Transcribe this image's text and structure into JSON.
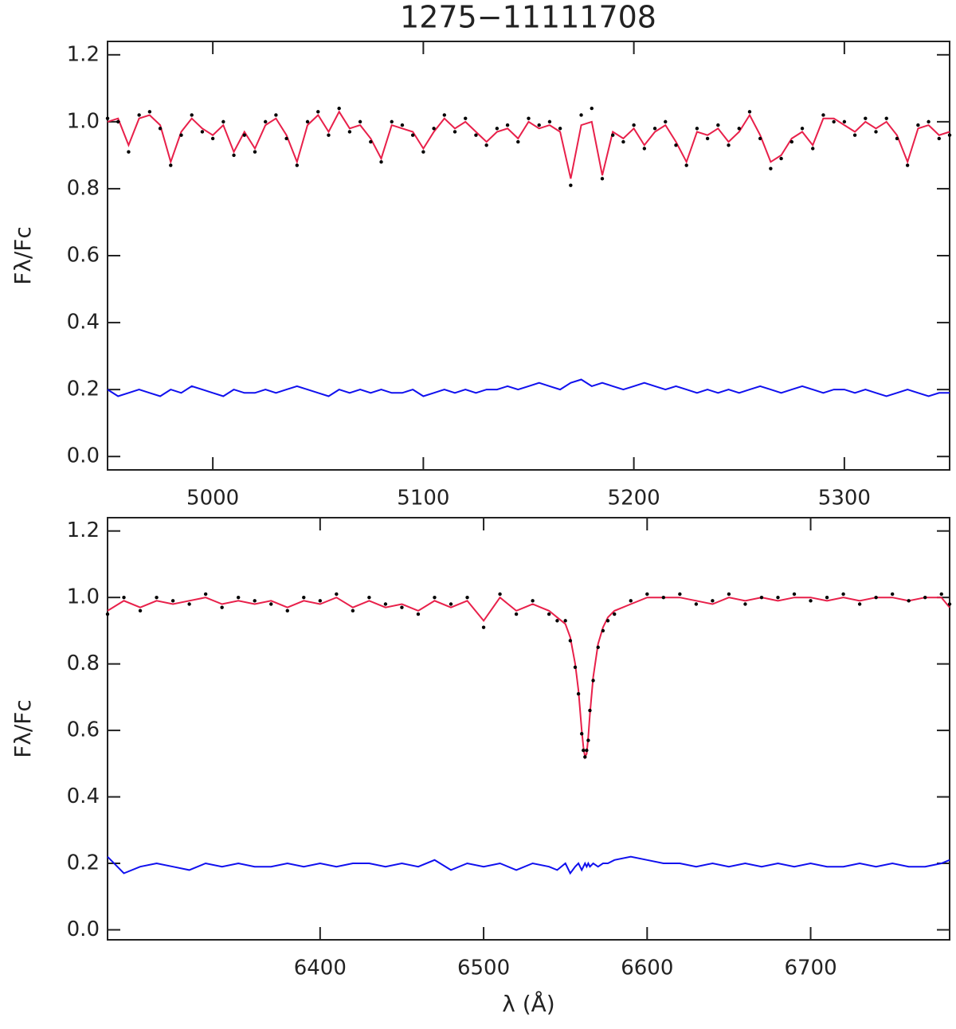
{
  "title": "1275−11111708",
  "chart_data": [
    {
      "type": "line",
      "ylabel": "Fλ/Fc",
      "xlim": [
        4950,
        5350
      ],
      "xticks": [
        5000,
        5100,
        5200,
        5300
      ],
      "ylim": [
        -0.04,
        1.24
      ],
      "yticks": [
        {
          "value": 0,
          "label": "0.0"
        },
        0.2,
        0.4,
        0.6,
        0.8,
        {
          "value": 1,
          "label": "1.0"
        },
        1.2
      ],
      "x": [
        4950,
        4955,
        4960,
        4965,
        4970,
        4975,
        4980,
        4985,
        4990,
        4995,
        5000,
        5005,
        5010,
        5015,
        5020,
        5025,
        5030,
        5035,
        5040,
        5045,
        5050,
        5055,
        5060,
        5065,
        5070,
        5075,
        5080,
        5085,
        5090,
        5095,
        5100,
        5105,
        5110,
        5115,
        5120,
        5125,
        5130,
        5135,
        5140,
        5145,
        5150,
        5155,
        5160,
        5165,
        5170,
        5175,
        5180,
        5185,
        5190,
        5195,
        5200,
        5205,
        5210,
        5215,
        5220,
        5225,
        5230,
        5235,
        5240,
        5245,
        5250,
        5255,
        5260,
        5265,
        5270,
        5275,
        5280,
        5285,
        5290,
        5295,
        5300,
        5305,
        5310,
        5315,
        5320,
        5325,
        5330,
        5335,
        5340,
        5345,
        5350
      ],
      "series": [
        {
          "mode": "line",
          "color": "#e8204a",
          "values": [
            1.0,
            1.01,
            0.93,
            1.01,
            1.02,
            0.99,
            0.88,
            0.97,
            1.01,
            0.98,
            0.96,
            0.99,
            0.91,
            0.97,
            0.92,
            0.99,
            1.01,
            0.96,
            0.88,
            0.99,
            1.02,
            0.97,
            1.03,
            0.98,
            0.99,
            0.95,
            0.89,
            0.99,
            0.98,
            0.97,
            0.92,
            0.97,
            1.01,
            0.98,
            1.0,
            0.97,
            0.94,
            0.97,
            0.98,
            0.95,
            1.0,
            0.98,
            0.99,
            0.97,
            0.83,
            0.99,
            1.0,
            0.84,
            0.97,
            0.95,
            0.98,
            0.93,
            0.97,
            0.99,
            0.94,
            0.88,
            0.97,
            0.96,
            0.98,
            0.94,
            0.97,
            1.02,
            0.96,
            0.88,
            0.9,
            0.95,
            0.97,
            0.93,
            1.01,
            1.01,
            0.99,
            0.97,
            1.0,
            0.98,
            1.0,
            0.96,
            0.88,
            0.98,
            0.99,
            0.96,
            0.97
          ]
        },
        {
          "mode": "markers",
          "color": "#000000",
          "values": [
            1.01,
            1.0,
            0.91,
            1.02,
            1.03,
            0.98,
            0.87,
            0.96,
            1.02,
            0.97,
            0.95,
            1.0,
            0.9,
            0.96,
            0.91,
            1.0,
            1.02,
            0.95,
            0.87,
            1.0,
            1.03,
            0.96,
            1.04,
            0.97,
            1.0,
            0.94,
            0.88,
            1.0,
            0.99,
            0.96,
            0.91,
            0.98,
            1.02,
            0.97,
            1.01,
            0.96,
            0.93,
            0.98,
            0.99,
            0.94,
            1.01,
            0.99,
            1.0,
            0.98,
            0.81,
            1.02,
            1.04,
            0.83,
            0.96,
            0.94,
            0.99,
            0.92,
            0.98,
            1.0,
            0.93,
            0.87,
            0.98,
            0.95,
            0.99,
            0.93,
            0.98,
            1.03,
            0.95,
            0.86,
            0.89,
            0.94,
            0.98,
            0.92,
            1.02,
            1.0,
            1.0,
            0.96,
            1.01,
            0.97,
            1.01,
            0.95,
            0.87,
            0.99,
            1.0,
            0.95,
            0.96
          ]
        },
        {
          "mode": "line",
          "color": "#1010ee",
          "values": [
            0.2,
            0.18,
            0.19,
            0.2,
            0.19,
            0.18,
            0.2,
            0.19,
            0.21,
            0.2,
            0.19,
            0.18,
            0.2,
            0.19,
            0.19,
            0.2,
            0.19,
            0.2,
            0.21,
            0.2,
            0.19,
            0.18,
            0.2,
            0.19,
            0.2,
            0.19,
            0.2,
            0.19,
            0.19,
            0.2,
            0.18,
            0.19,
            0.2,
            0.19,
            0.2,
            0.19,
            0.2,
            0.2,
            0.21,
            0.2,
            0.21,
            0.22,
            0.21,
            0.2,
            0.22,
            0.23,
            0.21,
            0.22,
            0.21,
            0.2,
            0.21,
            0.22,
            0.21,
            0.2,
            0.21,
            0.2,
            0.19,
            0.2,
            0.19,
            0.2,
            0.19,
            0.2,
            0.21,
            0.2,
            0.19,
            0.2,
            0.21,
            0.2,
            0.19,
            0.2,
            0.2,
            0.19,
            0.2,
            0.19,
            0.18,
            0.19,
            0.2,
            0.19,
            0.18,
            0.19,
            0.19
          ]
        }
      ]
    },
    {
      "type": "line",
      "ylabel": "Fλ/Fc",
      "xlabel": "λ (Å)",
      "xlim": [
        6270,
        6785
      ],
      "xticks": [
        6400,
        6500,
        6600,
        6700
      ],
      "ylim": [
        -0.03,
        1.24
      ],
      "yticks": [
        {
          "value": 0,
          "label": "0.0"
        },
        0.2,
        0.4,
        0.6,
        0.8,
        {
          "value": 1,
          "label": "1.0"
        },
        1.2
      ],
      "x": [
        6270,
        6280,
        6290,
        6300,
        6310,
        6320,
        6330,
        6340,
        6350,
        6360,
        6370,
        6380,
        6390,
        6400,
        6410,
        6420,
        6430,
        6440,
        6450,
        6460,
        6470,
        6480,
        6490,
        6500,
        6510,
        6520,
        6530,
        6540,
        6545,
        6550,
        6553,
        6556,
        6558,
        6560,
        6561,
        6562,
        6563,
        6564,
        6565,
        6567,
        6570,
        6573,
        6576,
        6580,
        6590,
        6600,
        6610,
        6620,
        6630,
        6640,
        6650,
        6660,
        6670,
        6680,
        6690,
        6700,
        6710,
        6720,
        6730,
        6740,
        6750,
        6760,
        6770,
        6780,
        6785
      ],
      "series": [
        {
          "mode": "line",
          "color": "#e8204a",
          "values": [
            0.96,
            0.99,
            0.97,
            0.99,
            0.98,
            0.99,
            1.0,
            0.98,
            0.99,
            0.98,
            0.99,
            0.97,
            0.99,
            0.98,
            1.0,
            0.97,
            0.99,
            0.97,
            0.98,
            0.96,
            0.99,
            0.97,
            0.99,
            0.93,
            1.0,
            0.96,
            0.98,
            0.96,
            0.94,
            0.92,
            0.88,
            0.8,
            0.72,
            0.6,
            0.55,
            0.52,
            0.53,
            0.58,
            0.65,
            0.76,
            0.86,
            0.91,
            0.94,
            0.96,
            0.98,
            1.0,
            1.0,
            1.0,
            0.99,
            0.98,
            1.0,
            0.99,
            1.0,
            0.99,
            1.0,
            1.0,
            0.99,
            1.0,
            0.99,
            1.0,
            1.0,
            0.99,
            1.0,
            1.0,
            0.97
          ]
        },
        {
          "mode": "markers",
          "color": "#000000",
          "values": [
            0.95,
            1.0,
            0.96,
            1.0,
            0.99,
            0.98,
            1.01,
            0.97,
            1.0,
            0.99,
            0.98,
            0.96,
            1.0,
            0.99,
            1.01,
            0.96,
            1.0,
            0.98,
            0.97,
            0.95,
            1.0,
            0.98,
            1.0,
            0.91,
            1.01,
            0.95,
            0.99,
            0.95,
            0.93,
            0.93,
            0.87,
            0.79,
            0.71,
            0.59,
            0.54,
            0.52,
            0.54,
            0.57,
            0.66,
            0.75,
            0.85,
            0.9,
            0.93,
            0.95,
            0.99,
            1.01,
            1.0,
            1.01,
            0.98,
            0.99,
            1.01,
            0.98,
            1.0,
            1.0,
            1.01,
            0.99,
            1.0,
            1.01,
            0.98,
            1.0,
            1.01,
            0.99,
            1.0,
            1.01,
            0.98
          ]
        },
        {
          "mode": "line",
          "color": "#1010ee",
          "values": [
            0.22,
            0.17,
            0.19,
            0.2,
            0.19,
            0.18,
            0.2,
            0.19,
            0.2,
            0.19,
            0.19,
            0.2,
            0.19,
            0.2,
            0.19,
            0.2,
            0.2,
            0.19,
            0.2,
            0.19,
            0.21,
            0.18,
            0.2,
            0.19,
            0.2,
            0.18,
            0.2,
            0.19,
            0.18,
            0.2,
            0.17,
            0.19,
            0.2,
            0.18,
            0.19,
            0.2,
            0.19,
            0.2,
            0.19,
            0.2,
            0.19,
            0.2,
            0.2,
            0.21,
            0.22,
            0.21,
            0.2,
            0.2,
            0.19,
            0.2,
            0.19,
            0.2,
            0.19,
            0.2,
            0.19,
            0.2,
            0.19,
            0.19,
            0.2,
            0.19,
            0.2,
            0.19,
            0.19,
            0.2,
            0.21
          ]
        }
      ]
    }
  ]
}
